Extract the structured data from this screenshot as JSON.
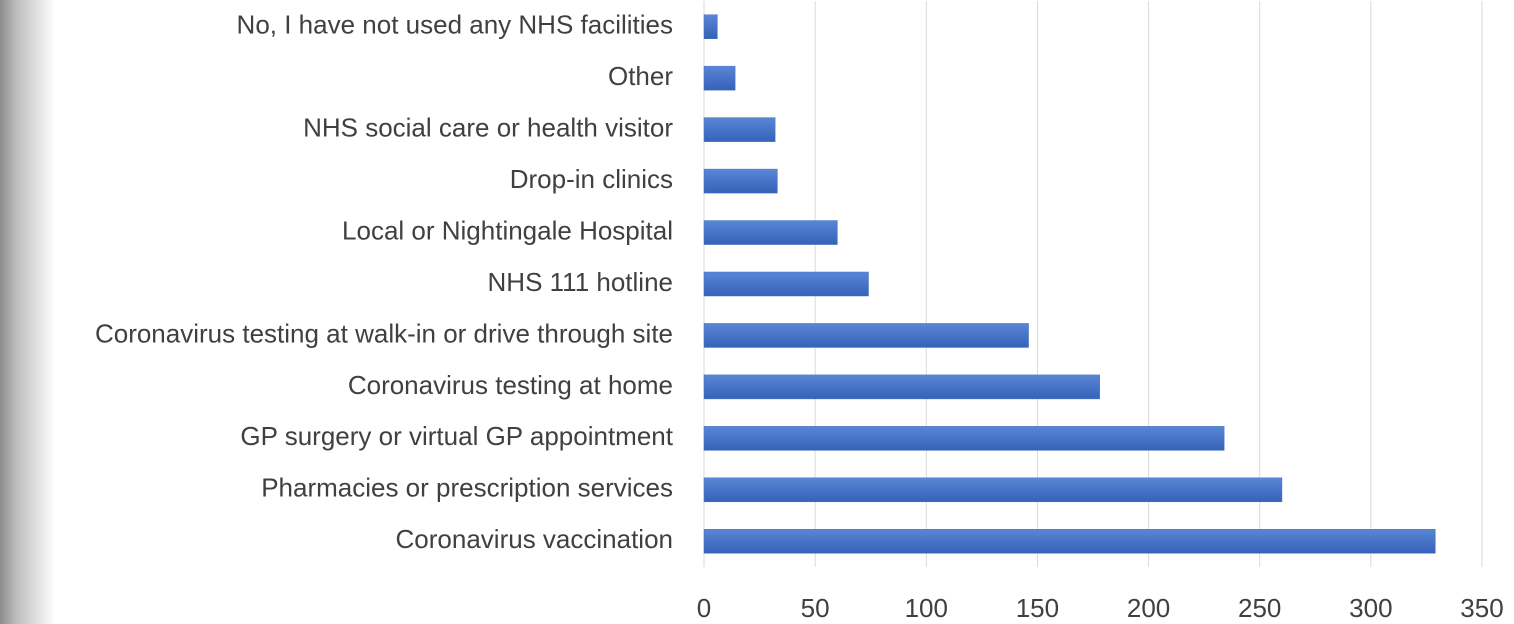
{
  "chart_data": {
    "type": "bar",
    "orientation": "horizontal",
    "categories": [
      "No, I have not used any NHS facilities",
      "Other",
      "NHS social care or health visitor",
      "Drop-in clinics",
      "Local or Nightingale Hospital",
      "NHS 111 hotline",
      "Coronavirus testing at walk-in or drive through site",
      "Coronavirus testing at home",
      "GP surgery or virtual GP appointment",
      "Pharmacies or prescription services",
      "Coronavirus vaccination"
    ],
    "values": [
      6,
      14,
      32,
      33,
      60,
      74,
      146,
      178,
      234,
      260,
      329
    ],
    "color": "#4472c4",
    "xlim": [
      0,
      350
    ],
    "xticks": [
      0,
      50,
      100,
      150,
      200,
      250,
      300,
      350
    ],
    "grid": true
  }
}
